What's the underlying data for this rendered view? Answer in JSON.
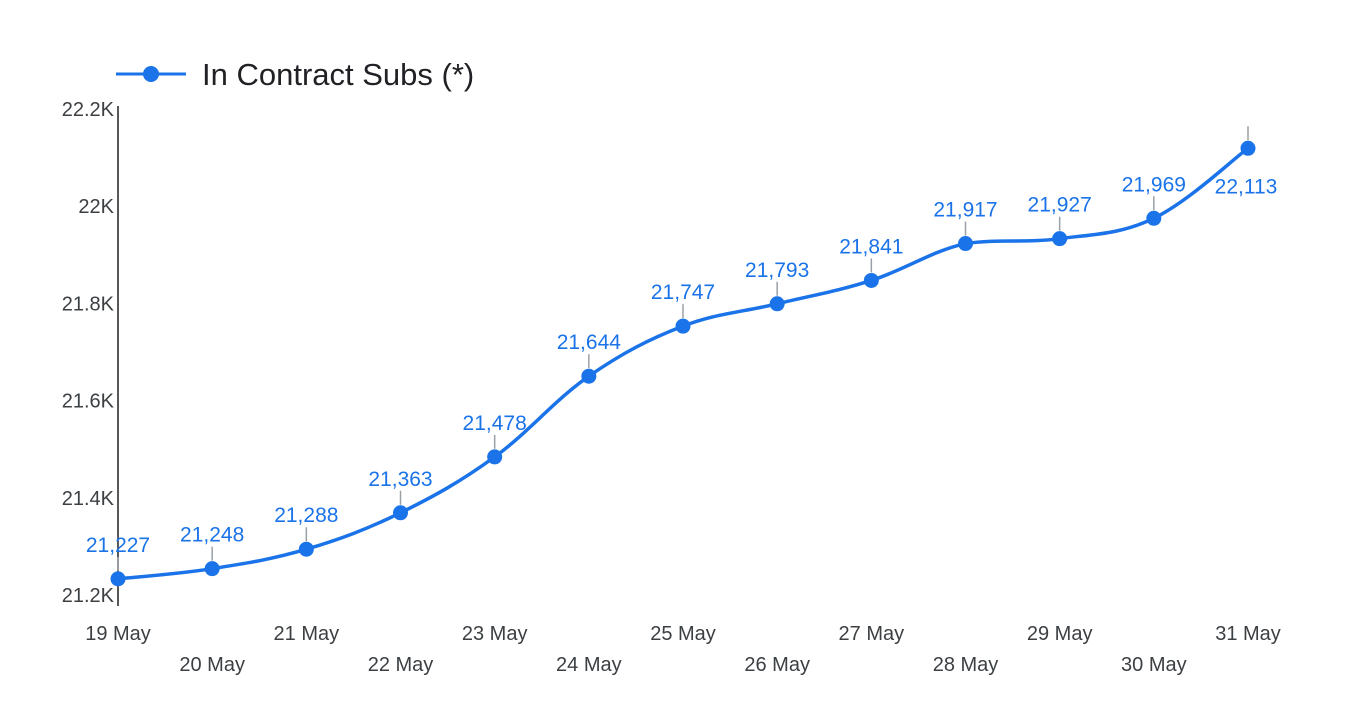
{
  "chart_data": {
    "type": "line",
    "categories": [
      "19 May",
      "20 May",
      "21 May",
      "22 May",
      "23 May",
      "24 May",
      "25 May",
      "26 May",
      "27 May",
      "28 May",
      "29 May",
      "30 May",
      "31 May"
    ],
    "series": [
      {
        "name": "In Contract Subs (*)",
        "values": [
          21227,
          21248,
          21288,
          21363,
          21478,
          21644,
          21747,
          21793,
          21841,
          21917,
          21927,
          21969,
          22113
        ],
        "labels": [
          "21,227",
          "21,248",
          "21,288",
          "21,363",
          "21,478",
          "21,644",
          "21,747",
          "21,793",
          "21,841",
          "21,917",
          "21,927",
          "21,969",
          "22,113"
        ],
        "color": "#1a73e8"
      }
    ],
    "y_ticks": [
      {
        "value": 21200,
        "label": "21.2K"
      },
      {
        "value": 21400,
        "label": "21.4K"
      },
      {
        "value": 21600,
        "label": "21.6K"
      },
      {
        "value": 21800,
        "label": "21.8K"
      },
      {
        "value": 22000,
        "label": "22K"
      },
      {
        "value": 22200,
        "label": "22.2K"
      }
    ],
    "ylim": [
      21200,
      22200
    ],
    "x_label_stagger": true,
    "legend_position": "top-left",
    "grid": false,
    "title": "",
    "xlabel": "",
    "ylabel": ""
  }
}
